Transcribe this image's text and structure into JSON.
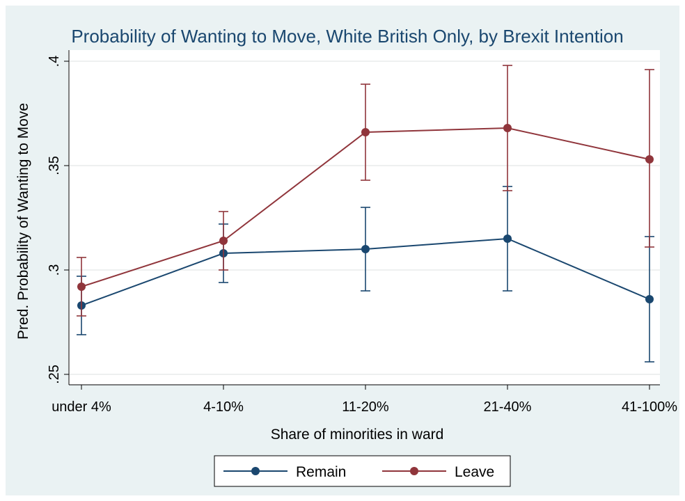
{
  "chart_data": {
    "type": "line",
    "title": "Probability of Wanting to Move, White British Only, by Brexit Intention",
    "xlabel": "Share of minorities in ward",
    "ylabel": "Pred. Probability of Wanting to Move",
    "categories": [
      "under 4%",
      "4-10%",
      "11-20%",
      "21-40%",
      "41-100%"
    ],
    "ylim": [
      0.25,
      0.4
    ],
    "yticks": [
      0.25,
      0.3,
      0.35,
      0.4
    ],
    "ytick_labels": [
      ".25",
      ".3",
      ".35",
      ".4"
    ],
    "grid": true,
    "legend_position": "bottom",
    "series": [
      {
        "name": "Remain",
        "color": "#1a476f",
        "values": [
          0.283,
          0.308,
          0.31,
          0.315,
          0.286
        ],
        "ci_low": [
          0.269,
          0.294,
          0.29,
          0.29,
          0.256
        ],
        "ci_high": [
          0.297,
          0.322,
          0.33,
          0.34,
          0.316
        ]
      },
      {
        "name": "Leave",
        "color": "#90353b",
        "values": [
          0.292,
          0.314,
          0.366,
          0.368,
          0.353
        ],
        "ci_low": [
          0.278,
          0.3,
          0.343,
          0.338,
          0.311
        ],
        "ci_high": [
          0.306,
          0.328,
          0.389,
          0.398,
          0.396
        ]
      }
    ]
  }
}
